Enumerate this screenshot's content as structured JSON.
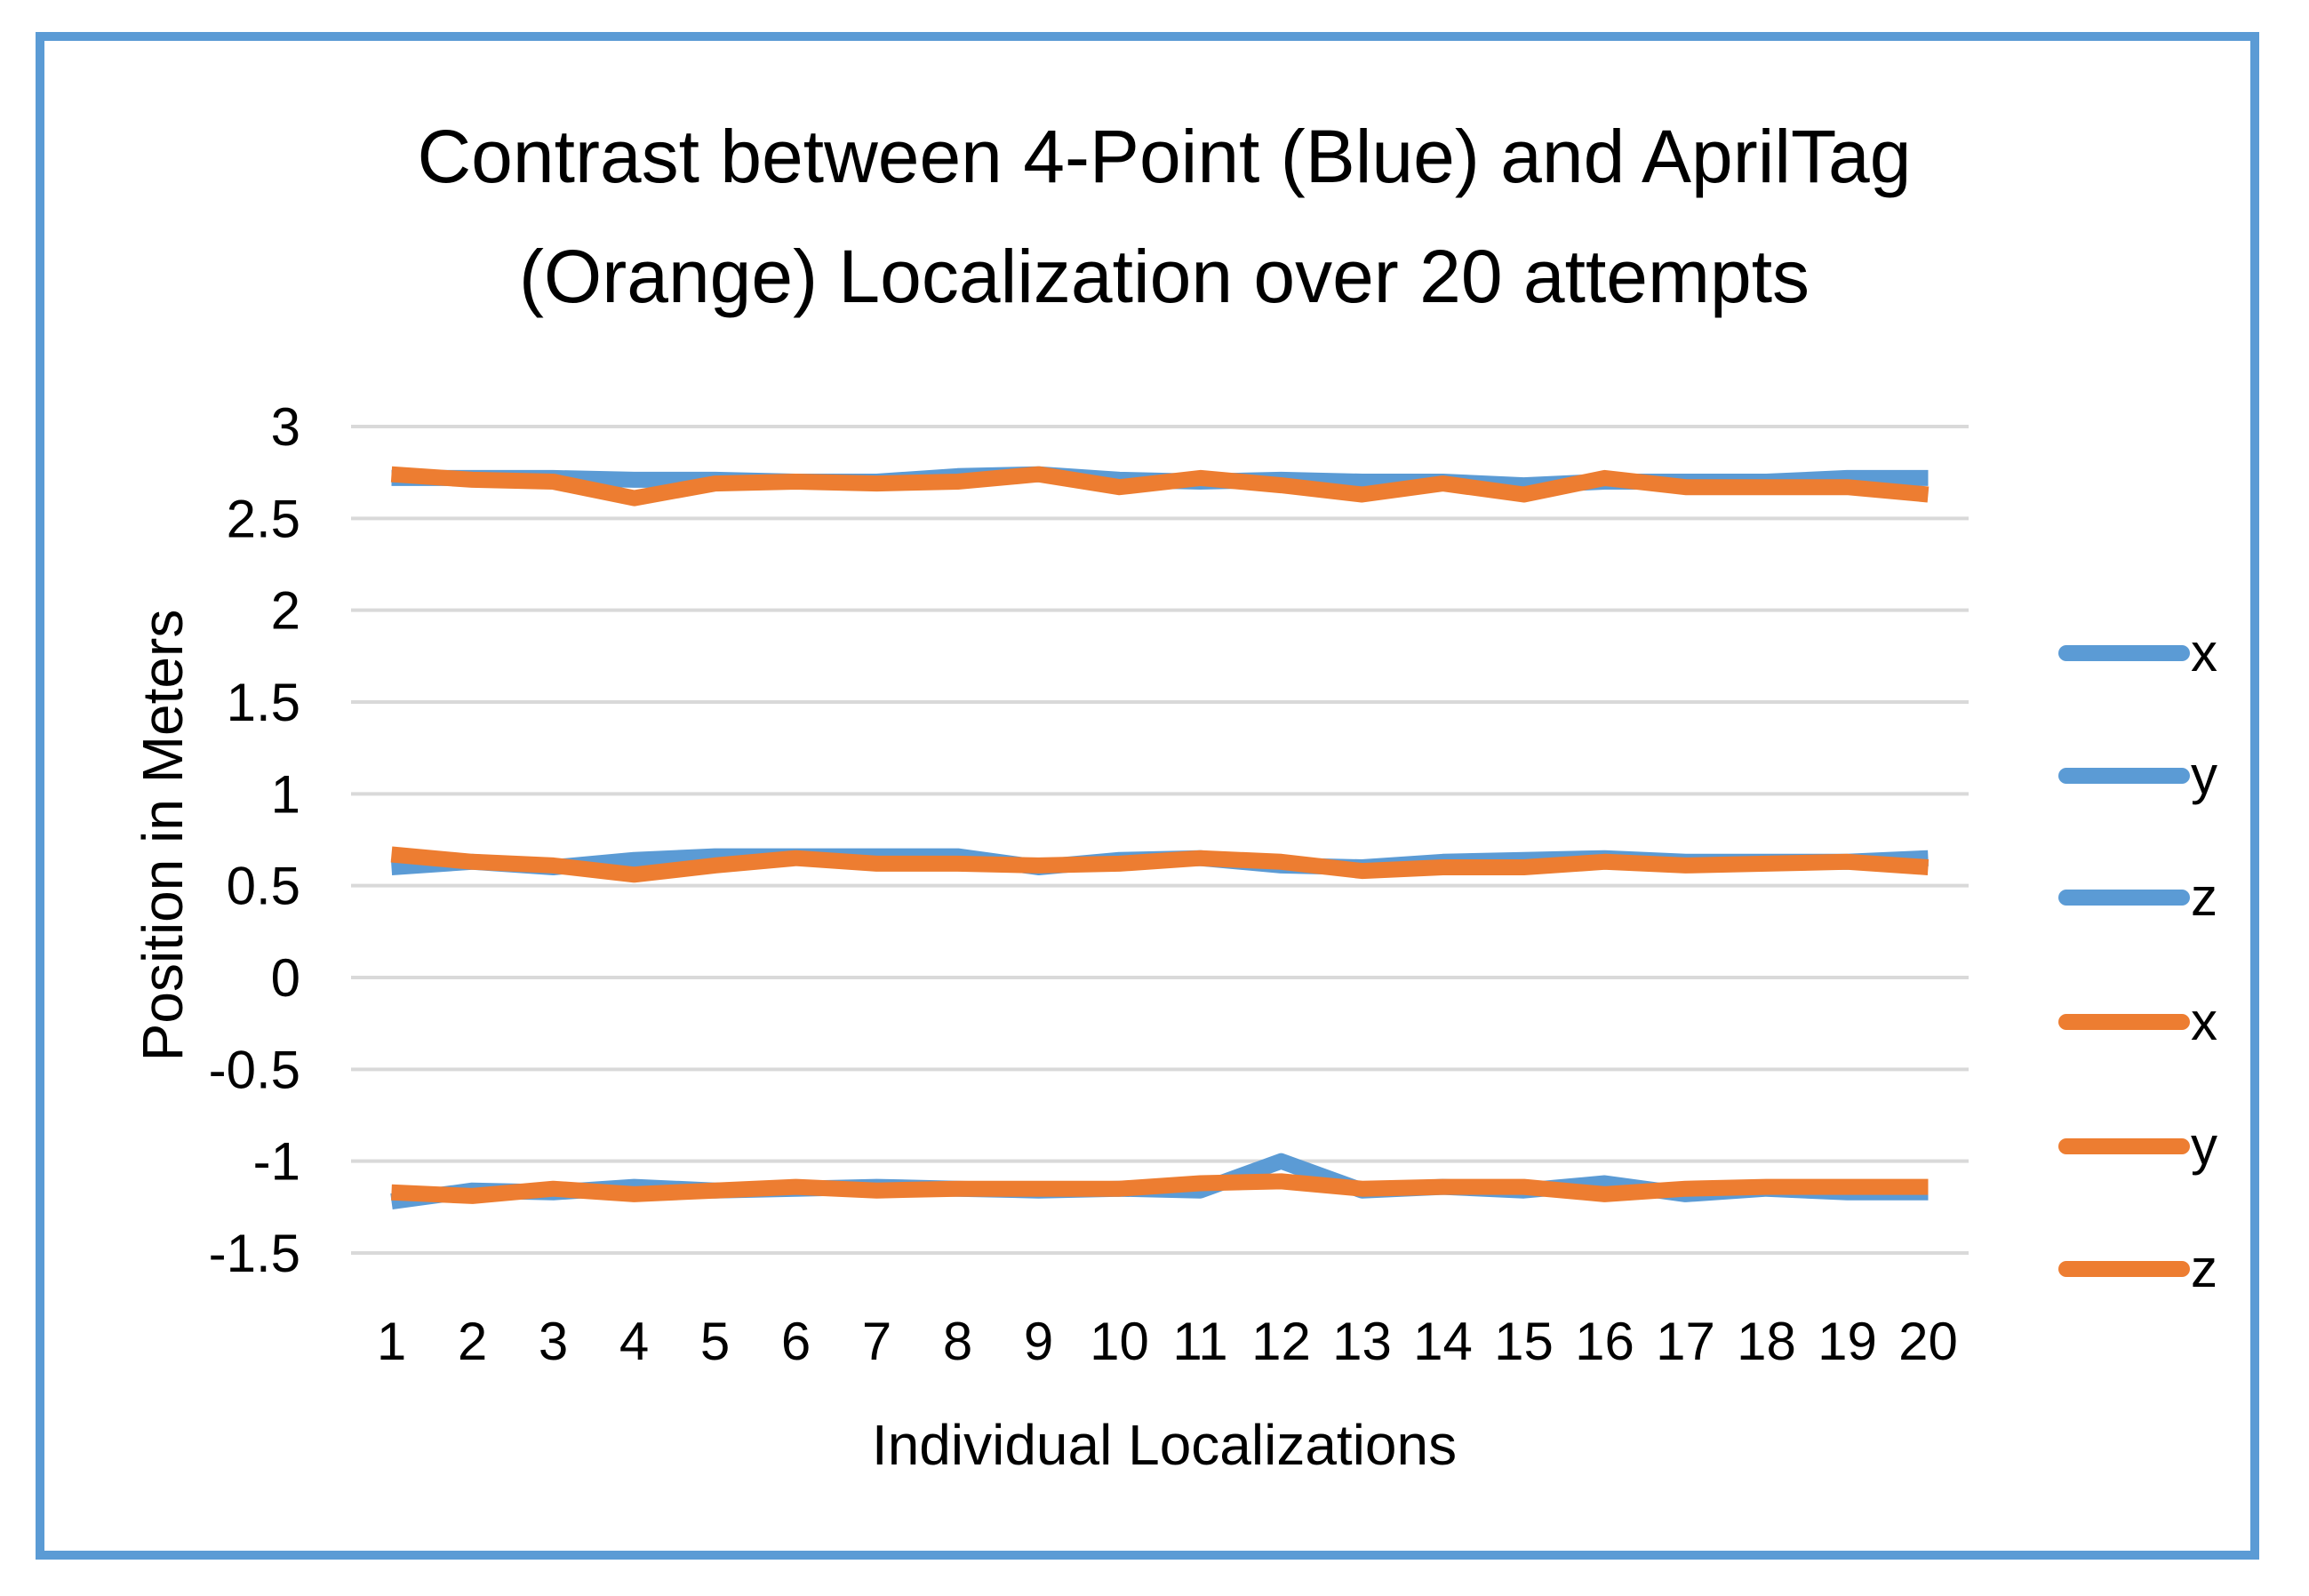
{
  "chart_data": {
    "type": "line",
    "title": "Contrast between 4-Point (Blue) and AprilTag (Orange) Localization over 20 attempts",
    "title_lines": [
      "Contrast between 4-Point (Blue) and AprilTag",
      "(Orange) Localization over 20 attempts"
    ],
    "xlabel": "Individual Localizations",
    "ylabel": "Position in Meters",
    "categories": [
      "1",
      "2",
      "3",
      "4",
      "5",
      "6",
      "7",
      "8",
      "9",
      "10",
      "11",
      "12",
      "13",
      "14",
      "15",
      "16",
      "17",
      "18",
      "19",
      "20"
    ],
    "ylim": [
      -1.5,
      3
    ],
    "yticks": [
      3,
      2.5,
      2,
      1.5,
      1,
      0.5,
      0,
      -0.5,
      -1,
      -1.5
    ],
    "ytick_labels": [
      "3",
      "2.5",
      "2",
      "1.5",
      "1",
      "0.5",
      "0",
      "-0.5",
      "-1",
      "-1.5"
    ],
    "grid": true,
    "legend_position": "right",
    "colors": {
      "blue": "#5b9bd5",
      "orange": "#ed7d31",
      "grid": "#d9d9d9",
      "frame": "#5b9bd5"
    },
    "series": [
      {
        "name": "x",
        "color": "#5b9bd5",
        "values": [
          2.72,
          2.72,
          2.72,
          2.71,
          2.71,
          2.7,
          2.7,
          2.73,
          2.74,
          2.71,
          2.7,
          2.71,
          2.7,
          2.7,
          2.68,
          2.7,
          2.7,
          2.7,
          2.72,
          2.72
        ]
      },
      {
        "name": "y",
        "color": "#5b9bd5",
        "values": [
          0.6,
          0.63,
          0.6,
          0.64,
          0.66,
          0.66,
          0.66,
          0.66,
          0.6,
          0.64,
          0.65,
          0.61,
          0.6,
          0.63,
          0.64,
          0.65,
          0.63,
          0.63,
          0.63,
          0.65
        ]
      },
      {
        "name": "z",
        "color": "#5b9bd5",
        "values": [
          -1.22,
          -1.16,
          -1.17,
          -1.14,
          -1.16,
          -1.15,
          -1.14,
          -1.15,
          -1.16,
          -1.15,
          -1.16,
          -1.0,
          -1.16,
          -1.14,
          -1.16,
          -1.12,
          -1.18,
          -1.15,
          -1.17,
          -1.17
        ]
      },
      {
        "name": "x",
        "color": "#ed7d31",
        "values": [
          2.74,
          2.71,
          2.7,
          2.61,
          2.69,
          2.7,
          2.69,
          2.7,
          2.74,
          2.67,
          2.72,
          2.68,
          2.63,
          2.69,
          2.63,
          2.72,
          2.67,
          2.67,
          2.67,
          2.63
        ]
      },
      {
        "name": "y",
        "color": "#ed7d31",
        "values": [
          0.67,
          0.63,
          0.61,
          0.56,
          0.61,
          0.65,
          0.62,
          0.62,
          0.61,
          0.62,
          0.65,
          0.63,
          0.58,
          0.6,
          0.6,
          0.63,
          0.61,
          0.62,
          0.63,
          0.6
        ]
      },
      {
        "name": "z",
        "color": "#ed7d31",
        "values": [
          -1.17,
          -1.19,
          -1.15,
          -1.18,
          -1.16,
          -1.14,
          -1.16,
          -1.15,
          -1.15,
          -1.15,
          -1.12,
          -1.11,
          -1.15,
          -1.14,
          -1.14,
          -1.18,
          -1.15,
          -1.14,
          -1.14,
          -1.14
        ]
      }
    ]
  }
}
